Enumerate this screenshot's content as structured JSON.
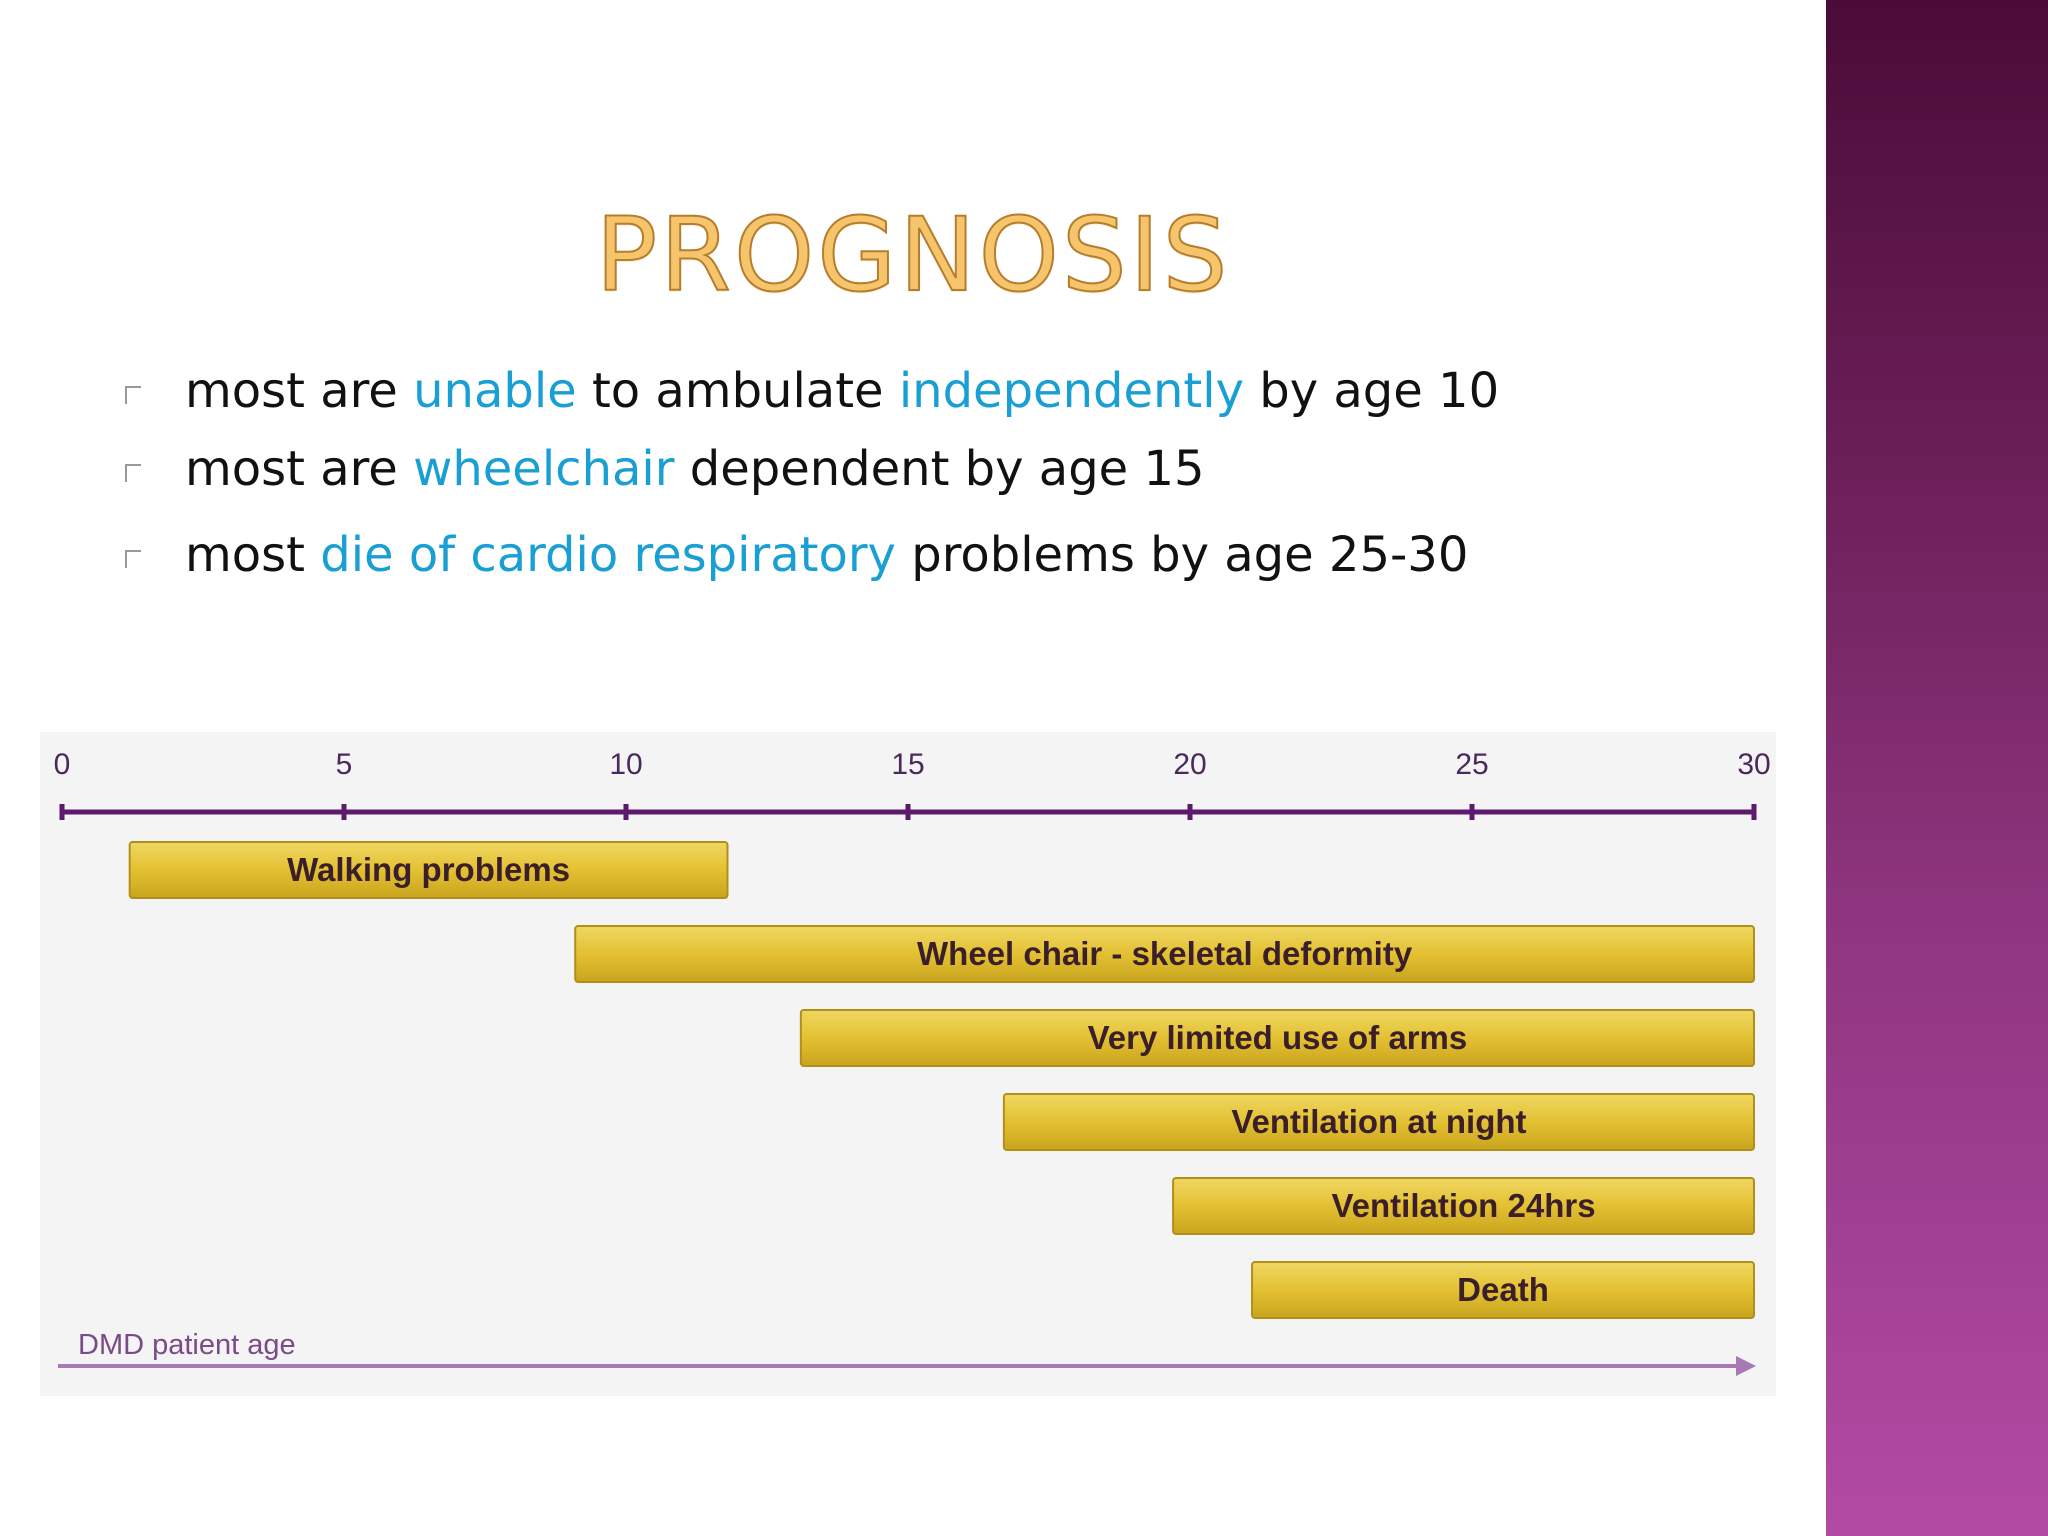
{
  "slide": {
    "title": "PROGNOSIS",
    "bullets": [
      {
        "segments": [
          {
            "text": "most are ",
            "highlight": false
          },
          {
            "text": "unable",
            "highlight": true
          },
          {
            "text": " to ambulate ",
            "highlight": false
          },
          {
            "text": "independently",
            "highlight": true
          },
          {
            "text": " by age 10",
            "highlight": false
          }
        ]
      },
      {
        "segments": [
          {
            "text": "most are ",
            "highlight": false
          },
          {
            "text": "wheelchair",
            "highlight": true
          },
          {
            "text": " dependent by age 15",
            "highlight": false
          }
        ]
      },
      {
        "segments": [
          {
            "text": "most ",
            "highlight": false
          },
          {
            "text": "die of cardio respiratory",
            "highlight": true
          },
          {
            "text": " problems by age 25-30",
            "highlight": false
          }
        ]
      }
    ],
    "colors": {
      "highlight": "#1a9fd4",
      "body_text": "#111111",
      "title_fill": "#f6c46b",
      "side_band": "#8f3580"
    }
  },
  "chart_data": {
    "type": "bar",
    "orientation": "horizontal-range",
    "title": "",
    "xlabel": "DMD patient age",
    "ylabel": "",
    "xlim": [
      0,
      30
    ],
    "x_ticks": [
      0,
      5,
      10,
      15,
      20,
      25,
      30
    ],
    "grid": true,
    "legend": "none",
    "bar_color": "#e3c132",
    "axis_color": "#5b1a6b",
    "series": [
      {
        "label": "Walking problems",
        "start": 1.2,
        "end": 11.8
      },
      {
        "label": "Wheel chair - skeletal deformity",
        "start": 9.1,
        "end": 30
      },
      {
        "label": "Very limited use of arms",
        "start": 13.1,
        "end": 30
      },
      {
        "label": "Ventilation at night",
        "start": 16.7,
        "end": 30
      },
      {
        "label": "Ventilation 24hrs",
        "start": 19.7,
        "end": 30
      },
      {
        "label": "Death",
        "start": 21.1,
        "end": 30
      }
    ]
  }
}
